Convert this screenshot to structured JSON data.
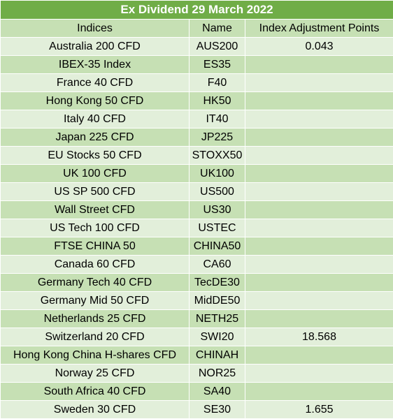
{
  "table": {
    "title": "Ex Dividend 29 March 2022",
    "headers": [
      "Indices",
      "Name",
      "Index Adjustment Points"
    ],
    "rows": [
      [
        "Australia 200 CFD",
        "AUS200",
        "0.043"
      ],
      [
        "IBEX-35 Index",
        "ES35",
        ""
      ],
      [
        "France 40 CFD",
        "F40",
        ""
      ],
      [
        "Hong Kong 50 CFD",
        "HK50",
        ""
      ],
      [
        "Italy 40 CFD",
        "IT40",
        ""
      ],
      [
        "Japan 225 CFD",
        "JP225",
        ""
      ],
      [
        "EU Stocks 50 CFD",
        "STOXX50",
        ""
      ],
      [
        "UK 100 CFD",
        "UK100",
        ""
      ],
      [
        "US SP 500 CFD",
        "US500",
        ""
      ],
      [
        "Wall Street CFD",
        "US30",
        ""
      ],
      [
        "US Tech 100 CFD",
        "USTEC",
        ""
      ],
      [
        "FTSE CHINA 50",
        "CHINA50",
        ""
      ],
      [
        "Canada 60 CFD",
        "CA60",
        ""
      ],
      [
        "Germany Tech 40 CFD",
        "TecDE30",
        ""
      ],
      [
        "Germany Mid 50 CFD",
        "MidDE50",
        ""
      ],
      [
        "Netherlands 25 CFD",
        "NETH25",
        ""
      ],
      [
        "Switzerland 20 CFD",
        "SWI20",
        "18.568"
      ],
      [
        "Hong Kong China H-shares CFD",
        "CHINAH",
        ""
      ],
      [
        "Norway 25 CFD",
        "NOR25",
        ""
      ],
      [
        "South Africa 40 CFD",
        "SA40",
        ""
      ],
      [
        "Sweden 30 CFD",
        "SE30",
        "1.655"
      ]
    ]
  },
  "colors": {
    "title_bg": "#70ad47",
    "title_text": "#ffffff",
    "band_light": "#e2efda",
    "band_dark": "#c6e0b4"
  }
}
